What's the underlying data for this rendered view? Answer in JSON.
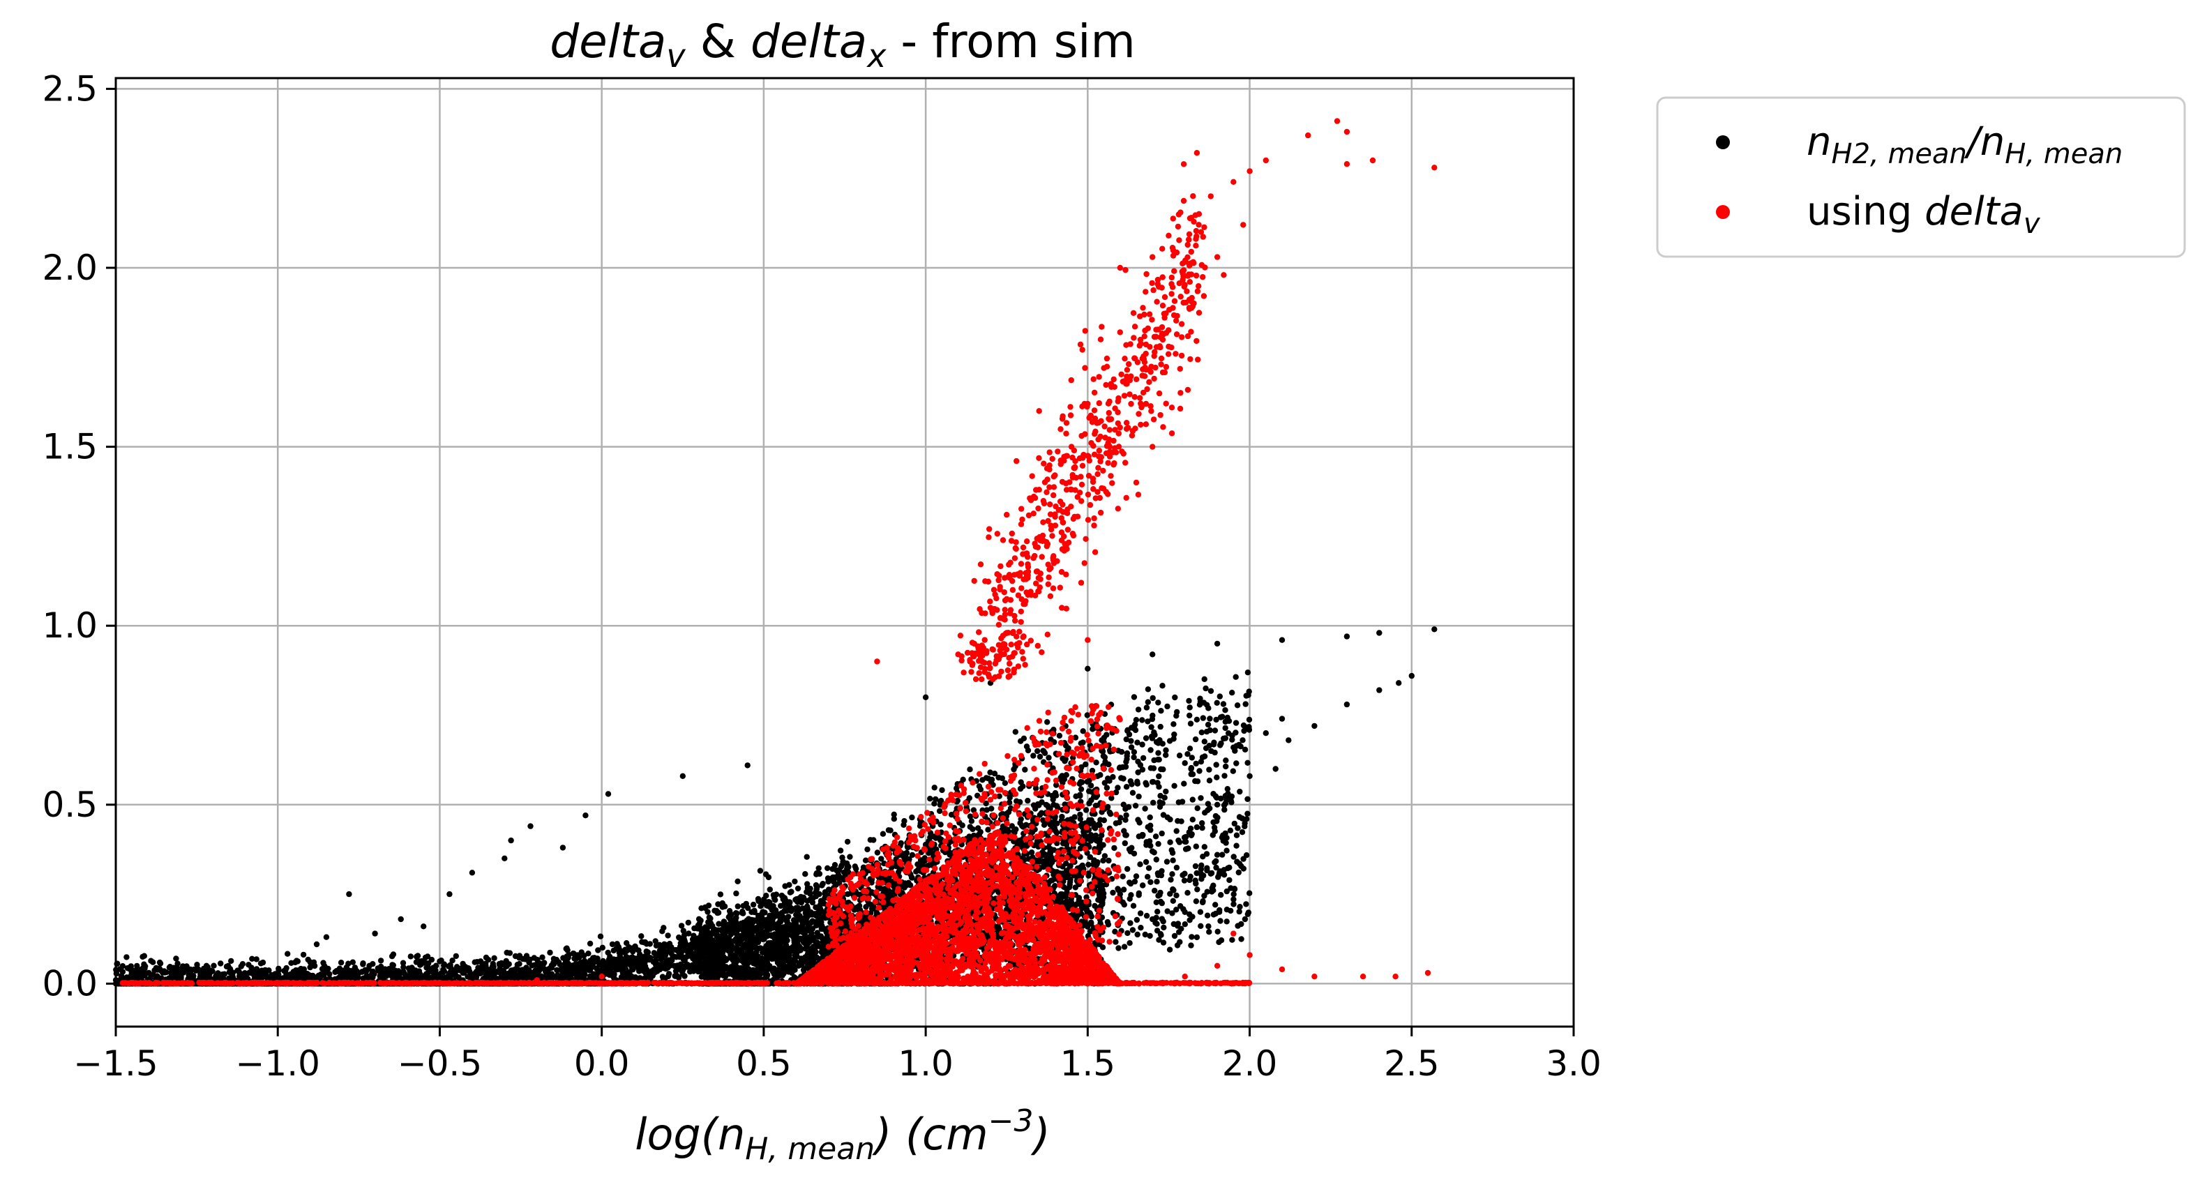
{
  "chart_data": {
    "type": "scatter",
    "title": {
      "part1_main": "delta",
      "part1_sub": "v",
      "amp": " & ",
      "part2_main": "delta",
      "part2_sub": "x",
      "rest": " - from sim"
    },
    "xlabel": {
      "pre": "log(n",
      "sub": "H, mean",
      "mid": ") (cm",
      "sup": "−3",
      "post": ")"
    },
    "ylabel": "",
    "xlim": [
      -1.5,
      3.0
    ],
    "ylim": [
      -0.12,
      2.53
    ],
    "xticks": [
      -1.5,
      -1.0,
      -0.5,
      0.0,
      0.5,
      1.0,
      1.5,
      2.0,
      2.5,
      3.0
    ],
    "xtick_labels": [
      "−1.5",
      "−1.0",
      "−0.5",
      "0.0",
      "0.5",
      "1.0",
      "1.5",
      "2.0",
      "2.5",
      "3.0"
    ],
    "yticks": [
      0.0,
      0.5,
      1.0,
      1.5,
      2.0,
      2.5
    ],
    "ytick_labels": [
      "0.0",
      "0.5",
      "1.0",
      "1.5",
      "2.0",
      "2.5"
    ],
    "grid": true,
    "legend_position": "outside-top-right",
    "series": [
      {
        "legend": {
          "a": "n",
          "a_sub": "H2, mean",
          "slash": "/",
          "b": "n",
          "b_sub": "H, mean"
        },
        "color": "#000000",
        "points": [
          [
            -1.27,
            0.04
          ],
          [
            -1.22,
            0.05
          ],
          [
            -1.0,
            0.02
          ],
          [
            -0.9,
            0.06
          ],
          [
            -0.88,
            0.11
          ],
          [
            -0.85,
            0.13
          ],
          [
            -0.78,
            0.25
          ],
          [
            -0.7,
            0.14
          ],
          [
            -0.62,
            0.18
          ],
          [
            -0.55,
            0.16
          ],
          [
            -0.47,
            0.25
          ],
          [
            -0.4,
            0.31
          ],
          [
            -0.3,
            0.35
          ],
          [
            -0.28,
            0.4
          ],
          [
            -0.22,
            0.44
          ],
          [
            -0.12,
            0.38
          ],
          [
            -0.05,
            0.47
          ],
          [
            0.02,
            0.53
          ],
          [
            0.25,
            0.58
          ],
          [
            0.45,
            0.61
          ],
          [
            1.0,
            0.8
          ],
          [
            1.2,
            0.84
          ],
          [
            1.5,
            0.88
          ],
          [
            1.7,
            0.92
          ],
          [
            1.9,
            0.95
          ],
          [
            2.1,
            0.96
          ],
          [
            2.3,
            0.97
          ],
          [
            2.4,
            0.98
          ],
          [
            2.57,
            0.99
          ],
          [
            1.66,
            0.45
          ],
          [
            1.72,
            0.55
          ],
          [
            1.78,
            0.4
          ],
          [
            1.85,
            0.62
          ],
          [
            1.9,
            0.5
          ],
          [
            1.95,
            0.66
          ],
          [
            2.0,
            0.58
          ],
          [
            2.05,
            0.7
          ],
          [
            2.1,
            0.74
          ],
          [
            2.2,
            0.72
          ],
          [
            2.3,
            0.78
          ],
          [
            2.4,
            0.82
          ],
          [
            2.46,
            0.84
          ],
          [
            2.5,
            0.86
          ],
          [
            1.8,
            0.2
          ],
          [
            1.85,
            0.32
          ],
          [
            1.9,
            0.36
          ],
          [
            1.6,
            0.25
          ],
          [
            1.65,
            0.3
          ],
          [
            1.7,
            0.18
          ],
          [
            2.08,
            0.6
          ],
          [
            2.12,
            0.68
          ],
          [
            1.62,
            0.55
          ],
          [
            1.55,
            0.6
          ]
        ],
        "bands": [
          {
            "x0": -1.5,
            "x1": 2.0,
            "base": 0.0,
            "amp": 0.88,
            "k": 2.8,
            "mid": 0.35,
            "spread": 0.14,
            "n": 4200
          },
          {
            "x0": 0.3,
            "x1": 1.55,
            "base": 0.0,
            "amp": 0.75,
            "k": 2.0,
            "mid": 0.6,
            "spread": 0.35,
            "n": 2600
          }
        ]
      },
      {
        "legend": {
          "text": "using ",
          "main": "delta",
          "sub": "v"
        },
        "color": "#ff0000",
        "points": [
          [
            1.6,
            2.0
          ],
          [
            1.7,
            2.03
          ],
          [
            1.75,
            2.09
          ],
          [
            1.82,
            2.14
          ],
          [
            1.88,
            2.2
          ],
          [
            1.95,
            2.24
          ],
          [
            2.0,
            2.27
          ],
          [
            2.05,
            2.3
          ],
          [
            2.18,
            2.37
          ],
          [
            2.27,
            2.41
          ],
          [
            2.3,
            2.38
          ],
          [
            2.38,
            2.3
          ],
          [
            2.57,
            2.28
          ],
          [
            2.3,
            2.29
          ],
          [
            1.85,
            2.1
          ],
          [
            1.9,
            2.03
          ],
          [
            1.98,
            2.12
          ],
          [
            1.92,
            1.98
          ],
          [
            1.28,
            1.46
          ],
          [
            1.35,
            1.6
          ],
          [
            1.25,
            1.31
          ],
          [
            1.3,
            1.2
          ],
          [
            1.35,
            1.38
          ],
          [
            1.45,
            1.5
          ],
          [
            1.5,
            1.62
          ],
          [
            1.55,
            1.72
          ],
          [
            1.6,
            1.82
          ],
          [
            1.42,
            1.05
          ],
          [
            1.48,
            1.12
          ],
          [
            1.52,
            1.3
          ],
          [
            1.58,
            1.45
          ],
          [
            1.62,
            1.55
          ],
          [
            1.68,
            1.62
          ],
          [
            1.7,
            1.5
          ],
          [
            1.65,
            1.4
          ],
          [
            1.75,
            1.78
          ],
          [
            1.4,
            1.28
          ],
          [
            1.2,
            1.05
          ],
          [
            1.25,
            0.98
          ],
          [
            1.15,
            0.95
          ],
          [
            1.1,
            0.92
          ],
          [
            0.85,
            0.9
          ],
          [
            1.5,
            0.96
          ],
          [
            2.55,
            0.03
          ],
          [
            1.95,
            0.14
          ],
          [
            2.0,
            0.08
          ],
          [
            2.1,
            0.04
          ],
          [
            2.2,
            0.02
          ],
          [
            2.35,
            0.02
          ],
          [
            2.45,
            0.02
          ],
          [
            1.9,
            0.05
          ],
          [
            1.8,
            0.02
          ],
          [
            0.0,
            0.02
          ],
          [
            -0.2,
            0.01
          ]
        ],
        "bands": [
          {
            "type": "tri",
            "x0": 0.6,
            "x1": 1.6,
            "peak": 1.22,
            "h": 0.45,
            "n": 3200
          },
          {
            "type": "rise",
            "x0": 1.15,
            "x1": 1.85,
            "y0": 0.85,
            "y1": 2.05,
            "n": 650
          },
          {
            "type": "mid",
            "x0": 0.7,
            "x1": 1.6,
            "y0": 0.1,
            "y1": 0.78,
            "n": 700
          },
          {
            "type": "floor",
            "x0": -1.5,
            "x1": 2.0,
            "n": 900
          }
        ]
      }
    ]
  }
}
